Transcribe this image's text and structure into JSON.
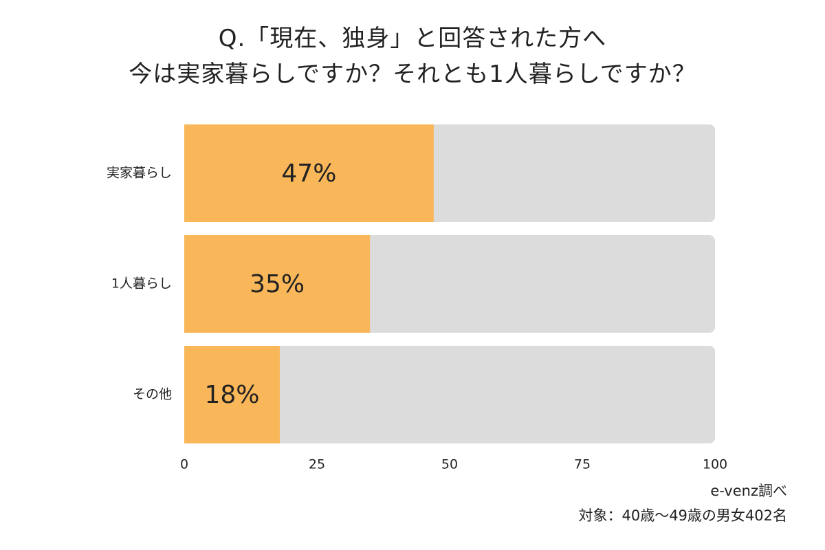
{
  "chart_data": {
    "type": "bar",
    "orientation": "horizontal",
    "title_lines": [
      "Q.「現在、独身」と回答された方へ",
      "今は実家暮らしですか？それとも1人暮らしですか？"
    ],
    "categories": [
      "実家暮らし",
      "1人暮らし",
      "その他"
    ],
    "values": [
      47,
      35,
      18
    ],
    "value_labels": [
      "47%",
      "35%",
      "18%"
    ],
    "xlim": [
      0,
      100
    ],
    "ticks": [
      0,
      25,
      50,
      75,
      100
    ],
    "tick_labels": [
      "0",
      "25",
      "50",
      "75",
      "100"
    ],
    "grid": false,
    "colors": {
      "bar": "#F9B75A",
      "track": "#DCDCDC"
    }
  },
  "footer": {
    "source": "e-venz調べ",
    "target": "対象：40歳～49歳の男女402名"
  }
}
